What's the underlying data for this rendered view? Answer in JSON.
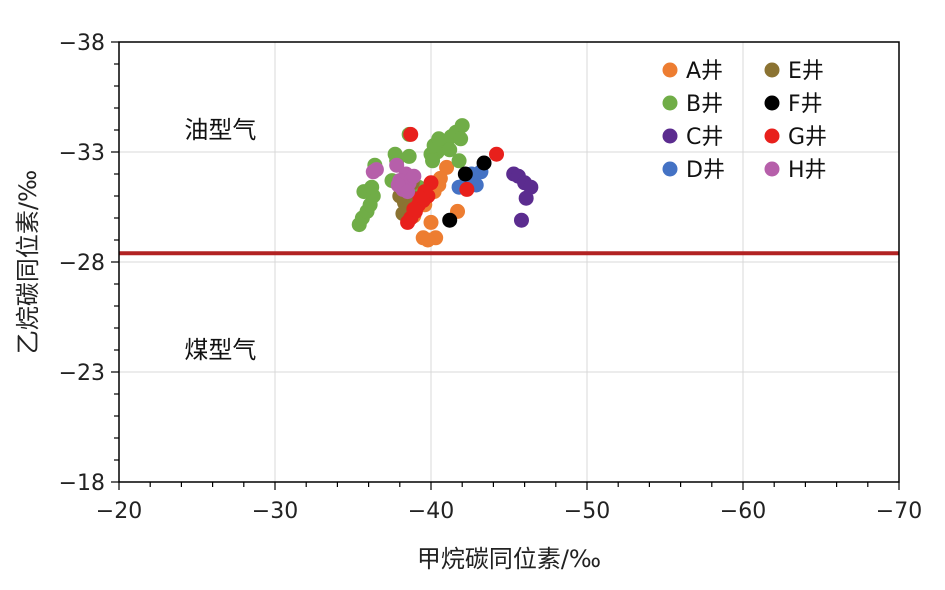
{
  "chart_data": {
    "type": "scatter",
    "xlabel": "甲烷碳同位素/‰",
    "ylabel": "乙烷碳同位素/‰",
    "xlim": [
      -20,
      -70
    ],
    "ylim": [
      -18,
      -38
    ],
    "x_ticks": [
      -20,
      -30,
      -40,
      -50,
      -60,
      -70
    ],
    "y_ticks": [
      -38,
      -33,
      -28,
      -23,
      -18
    ],
    "x_tick_labels": [
      "−20",
      "−30",
      "−40",
      "−50",
      "−60",
      "−70"
    ],
    "y_tick_labels": [
      "−38",
      "−33",
      "−28",
      "−23",
      "−18"
    ],
    "grid": true,
    "legend_position": "top-right",
    "reference_line": {
      "y": -28.4,
      "color": "#b22222"
    },
    "annotations": [
      {
        "text": "油型气",
        "x": -26.5,
        "y": -34.0
      },
      {
        "text": "煤型气",
        "x": -26.5,
        "y": -24.0
      }
    ],
    "series": [
      {
        "name": "A井",
        "color": "#ED7D31",
        "points": [
          [
            -39.5,
            -29.1
          ],
          [
            -40.3,
            -29.1
          ],
          [
            -39.8,
            -29.0
          ],
          [
            -40.0,
            -29.8
          ],
          [
            -41.7,
            -30.3
          ],
          [
            -40.5,
            -31.5
          ],
          [
            -40.2,
            -31.2
          ],
          [
            -39.3,
            -31.0
          ],
          [
            -41.0,
            -32.3
          ],
          [
            -40.6,
            -31.8
          ],
          [
            -39.6,
            -30.6
          ],
          [
            -38.9,
            -30.1
          ]
        ]
      },
      {
        "name": "B井",
        "color": "#70AD47",
        "points": [
          [
            -35.4,
            -29.7
          ],
          [
            -35.6,
            -30.0
          ],
          [
            -35.9,
            -30.3
          ],
          [
            -36.1,
            -30.6
          ],
          [
            -36.3,
            -31.0
          ],
          [
            -35.7,
            -31.2
          ],
          [
            -36.2,
            -31.4
          ],
          [
            -37.5,
            -31.7
          ],
          [
            -36.4,
            -32.4
          ],
          [
            -37.8,
            -32.6
          ],
          [
            -37.7,
            -32.9
          ],
          [
            -38.6,
            -32.8
          ],
          [
            -40.0,
            -32.9
          ],
          [
            -40.4,
            -33.0
          ],
          [
            -40.7,
            -33.2
          ],
          [
            -40.2,
            -33.3
          ],
          [
            -41.0,
            -33.5
          ],
          [
            -41.3,
            -33.7
          ],
          [
            -41.6,
            -33.9
          ],
          [
            -42.0,
            -34.2
          ],
          [
            -41.2,
            -33.1
          ],
          [
            -40.5,
            -33.6
          ],
          [
            -41.8,
            -32.6
          ],
          [
            -38.6,
            -33.8
          ],
          [
            -41.9,
            -33.6
          ],
          [
            -40.1,
            -32.6
          ],
          [
            -39.2,
            -31.4
          ]
        ]
      },
      {
        "name": "C井",
        "color": "#5B2C8F",
        "points": [
          [
            -45.3,
            -32.0
          ],
          [
            -45.6,
            -31.9
          ],
          [
            -46.0,
            -31.6
          ],
          [
            -46.4,
            -31.4
          ],
          [
            -46.1,
            -30.9
          ],
          [
            -45.8,
            -29.9
          ]
        ]
      },
      {
        "name": "D井",
        "color": "#4472C4",
        "points": [
          [
            -41.8,
            -31.4
          ],
          [
            -42.3,
            -31.7
          ],
          [
            -42.9,
            -31.5
          ],
          [
            -43.2,
            -32.1
          ],
          [
            -42.6,
            -32.0
          ]
        ]
      },
      {
        "name": "E井",
        "color": "#8B7332",
        "points": [
          [
            -38.0,
            -31.0
          ],
          [
            -38.3,
            -30.7
          ],
          [
            -38.5,
            -30.4
          ],
          [
            -38.7,
            -30.0
          ],
          [
            -38.4,
            -31.3
          ],
          [
            -38.8,
            -31.6
          ],
          [
            -38.2,
            -30.2
          ],
          [
            -38.9,
            -30.9
          ]
        ]
      },
      {
        "name": "F井",
        "color": "#000000",
        "points": [
          [
            -43.4,
            -32.5
          ],
          [
            -42.2,
            -32.0
          ],
          [
            -41.2,
            -29.9
          ]
        ]
      },
      {
        "name": "G井",
        "color": "#E8201C",
        "points": [
          [
            -38.7,
            -33.8
          ],
          [
            -44.2,
            -32.9
          ],
          [
            -42.3,
            -31.3
          ],
          [
            -40.0,
            -31.6
          ],
          [
            -39.8,
            -31.0
          ],
          [
            -39.5,
            -30.8
          ],
          [
            -39.2,
            -30.6
          ],
          [
            -39.0,
            -30.3
          ],
          [
            -38.7,
            -30.0
          ],
          [
            -38.5,
            -29.8
          ],
          [
            -39.6,
            -31.2
          ],
          [
            -39.3,
            -30.9
          ],
          [
            -38.9,
            -30.4
          ]
        ]
      },
      {
        "name": "H井",
        "color": "#B65FAA",
        "points": [
          [
            -36.5,
            -32.2
          ],
          [
            -36.3,
            -32.1
          ],
          [
            -37.8,
            -32.4
          ],
          [
            -38.4,
            -32.0
          ],
          [
            -38.0,
            -31.7
          ],
          [
            -38.6,
            -31.6
          ],
          [
            -38.2,
            -31.3
          ],
          [
            -38.9,
            -31.9
          ],
          [
            -37.9,
            -31.5
          ],
          [
            -38.5,
            -31.2
          ]
        ]
      }
    ]
  }
}
